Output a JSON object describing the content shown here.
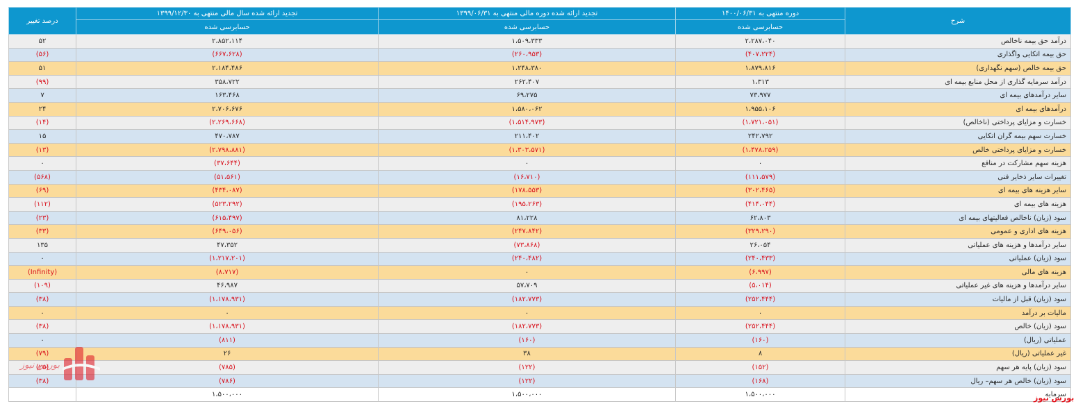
{
  "headers": {
    "pct": "درصد تغییر",
    "col_y1399": "تجدید ارائه شده سال مالی منتهی به ۱۳۹۹/۱۲/۳۰",
    "col_h1399": "تجدید ارائه شده دوره مالی منتهی به ۱۳۹۹/۰۶/۳۱",
    "col_h1400": "دوره منتهی به ۱۴۰۰/۰۶/۳۱",
    "desc": "شرح",
    "audited": "حسابرسی شده"
  },
  "rows": [
    {
      "pct": "۵۲",
      "y1399": "۲،۸۵۲،۱۱۴",
      "h1399": "۱،۵۰۹،۳۳۳",
      "h1400": "۲،۲۸۷،۰۴۰",
      "desc": "درآمد حق بیمه ناخالص"
    },
    {
      "pct": "(۵۶)",
      "y1399": "(۶۶۷،۶۲۸)",
      "h1399": "(۲۶۰،۹۵۳)",
      "h1400": "(۴۰۷،۲۲۴)",
      "desc": "حق بیمه اتکایی واگذاری"
    },
    {
      "pct": "۵۱",
      "y1399": "۲،۱۸۴،۴۸۶",
      "h1399": "۱،۲۴۸،۳۸۰",
      "h1400": "۱،۸۷۹،۸۱۶",
      "desc": "حق بیمه خالص (سهم نگهداری)"
    },
    {
      "pct": "(۹۹)",
      "y1399": "۳۵۸،۷۲۲",
      "h1399": "۲۶۲،۴۰۷",
      "h1400": "۱،۳۱۳",
      "desc": "درآمد سرمایه گذاری از محل منابع بیمه ای"
    },
    {
      "pct": "۷",
      "y1399": "۱۶۳،۴۶۸",
      "h1399": "۶۹،۲۷۵",
      "h1400": "۷۳،۹۷۷",
      "desc": "سایر درآمدهای بیمه ای"
    },
    {
      "pct": "۲۴",
      "y1399": "۲،۷۰۶،۶۷۶",
      "h1399": "۱،۵۸۰،۰۶۲",
      "h1400": "۱،۹۵۵،۱۰۶",
      "desc": "درآمدهای بیمه ای"
    },
    {
      "pct": "(۱۴)",
      "y1399": "(۲،۲۶۹،۶۶۸)",
      "h1399": "(۱،۵۱۴،۹۷۳)",
      "h1400": "(۱،۷۲۱،۰۵۱)",
      "desc": "خسارت و مزایای پرداختی (ناخالص)"
    },
    {
      "pct": "۱۵",
      "y1399": "۴۷۰،۷۸۷",
      "h1399": "۲۱۱،۴۰۲",
      "h1400": "۲۴۲،۷۹۲",
      "desc": "خسارت سهم بیمه گران اتکایی"
    },
    {
      "pct": "(۱۳)",
      "y1399": "(۲،۷۹۸،۸۸۱)",
      "h1399": "(۱،۳۰۳،۵۷۱)",
      "h1400": "(۱،۴۷۸،۲۵۹)",
      "desc": "خسارت و مزایای پرداختی خالص"
    },
    {
      "pct": "۰",
      "y1399": "(۳۷،۶۴۴)",
      "h1399": "۰",
      "h1400": "۰",
      "desc": "هزینه سهم مشارکت در منافع"
    },
    {
      "pct": "(۵۶۸)",
      "y1399": "(۵۱،۵۶۱)",
      "h1399": "(۱۶،۷۱۰)",
      "h1400": "(۱۱۱،۵۷۹)",
      "desc": "تغییرات سایر ذخایر فنی"
    },
    {
      "pct": "(۶۹)",
      "y1399": "(۴۳۴،۰۸۷)",
      "h1399": "(۱۷۸،۵۵۳)",
      "h1400": "(۳۰۲،۴۶۵)",
      "desc": "سایر هزینه های بیمه ای"
    },
    {
      "pct": "(۱۱۲)",
      "y1399": "(۵۲۳،۲۹۲)",
      "h1399": "(۱۹۵،۲۶۳)",
      "h1400": "(۴۱۴،۰۴۴)",
      "desc": "هزینه های بیمه ای"
    },
    {
      "pct": "(۲۳)",
      "y1399": "(۶۱۵،۴۹۷)",
      "h1399": "۸۱،۲۲۸",
      "h1400": "۶۲،۸۰۳",
      "desc": "سود (زیان) ناخالص فعالیتهای بیمه ای"
    },
    {
      "pct": "(۳۳)",
      "y1399": "(۶۴۹،۰۵۶)",
      "h1399": "(۲۴۷،۸۴۲)",
      "h1400": "(۳۲۹،۲۹۰)",
      "desc": "هزینه های اداری و عمومی"
    },
    {
      "pct": "۱۳۵",
      "y1399": "۴۷،۳۵۲",
      "h1399": "(۷۳،۸۶۸)",
      "h1400": "۲۶،۰۵۴",
      "desc": "سایر درآمدها و هزینه های عملیاتی"
    },
    {
      "pct": "۰",
      "y1399": "(۱،۲۱۷،۲۰۱)",
      "h1399": "(۲۴۰،۴۸۲)",
      "h1400": "(۲۴۰،۴۳۳)",
      "desc": "سود (زیان) عملیاتی"
    },
    {
      "pct": "(Infinity)",
      "y1399": "(۸،۷۱۷)",
      "h1399": "۰",
      "h1400": "(۶،۹۹۷)",
      "desc": "هزینه های مالی"
    },
    {
      "pct": "(۱۰۹)",
      "y1399": "۴۶،۹۸۷",
      "h1399": "۵۷،۷۰۹",
      "h1400": "(۵،۰۱۴)",
      "desc": "سایر درآمدها و هزینه های غیر عملیاتی"
    },
    {
      "pct": "(۳۸)",
      "y1399": "(۱،۱۷۸،۹۳۱)",
      "h1399": "(۱۸۲،۷۷۳)",
      "h1400": "(۲۵۲،۴۴۴)",
      "desc": "سود (زیان) قبل از مالیات"
    },
    {
      "pct": "۰",
      "y1399": "۰",
      "h1399": "۰",
      "h1400": "۰",
      "desc": "مالیات بر درآمد"
    },
    {
      "pct": "(۳۸)",
      "y1399": "(۱،۱۷۸،۹۳۱)",
      "h1399": "(۱۸۲،۷۷۳)",
      "h1400": "(۲۵۲،۴۴۴)",
      "desc": "سود (زیان) خالص"
    },
    {
      "pct": "۰",
      "y1399": "(۸۱۱)",
      "h1399": "(۱۶۰)",
      "h1400": "(۱۶۰)",
      "desc": "عملیاتی (ریال)"
    },
    {
      "pct": "(۷۹)",
      "y1399": "۲۶",
      "h1399": "۳۸",
      "h1400": "۸",
      "desc": "غیر عملیاتی (ریال)"
    },
    {
      "pct": "(۲۵)",
      "y1399": "(۷۸۵)",
      "h1399": "(۱۲۲)",
      "h1400": "(۱۵۲)",
      "desc": "سود (زیان) پایه هر سهم"
    },
    {
      "pct": "(۳۸)",
      "y1399": "(۷۸۶)",
      "h1399": "(۱۲۲)",
      "h1400": "(۱۶۸)",
      "desc": "سود (زیان) خالص هر سهم– ریال"
    },
    {
      "pct": "",
      "y1399": "۱،۵۰۰،۰۰۰",
      "h1399": "۱،۵۰۰،۰۰۰",
      "h1400": "۱،۵۰۰،۰۰۰",
      "desc": "سرمایه"
    }
  ],
  "colors": {
    "header": "#0e97cf",
    "row_gray": "#eeeeee",
    "row_blue": "#d4e3f1",
    "row_orange": "#fbdb9a",
    "negative": "#d8111c"
  },
  "watermark": "بورس نیوز",
  "logo_text": "بورس نیوز"
}
